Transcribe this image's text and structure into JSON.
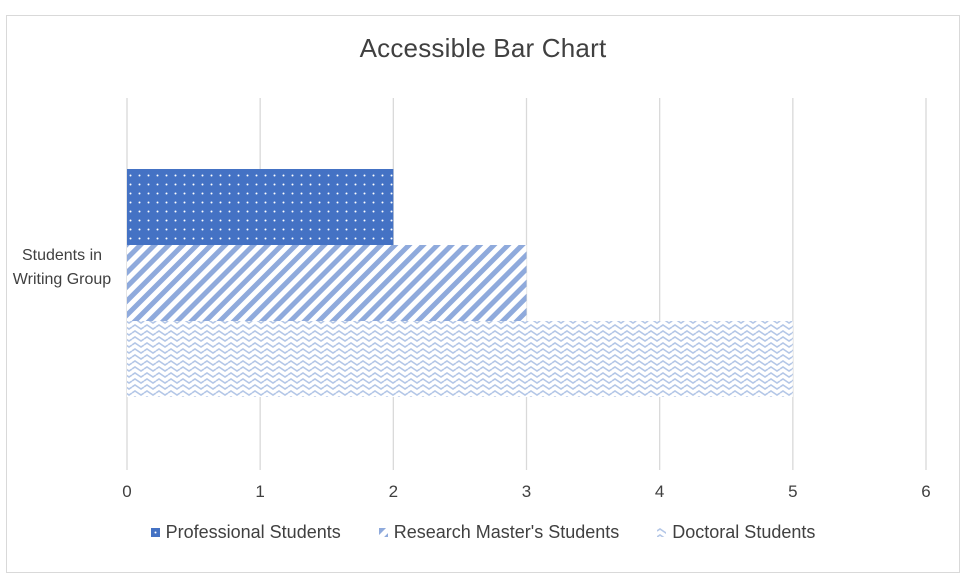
{
  "chart_data": {
    "type": "bar",
    "orientation": "horizontal",
    "title": "Accessible Bar Chart",
    "categories": [
      "Students in Writing Group"
    ],
    "series": [
      {
        "name": "Professional Students",
        "values": [
          2
        ],
        "color": "#4472c4",
        "pattern": "dots"
      },
      {
        "name": "Research Master's Students",
        "values": [
          3
        ],
        "color": "#8faadc",
        "pattern": "diagonal-stripes"
      },
      {
        "name": "Doctoral Students",
        "values": [
          5
        ],
        "color": "#b4c7e7",
        "pattern": "waves"
      }
    ],
    "xlim": [
      0,
      6
    ],
    "xticks": [
      "0",
      "1",
      "2",
      "3",
      "4",
      "5",
      "6"
    ],
    "grid": true,
    "legend": "bottom"
  }
}
